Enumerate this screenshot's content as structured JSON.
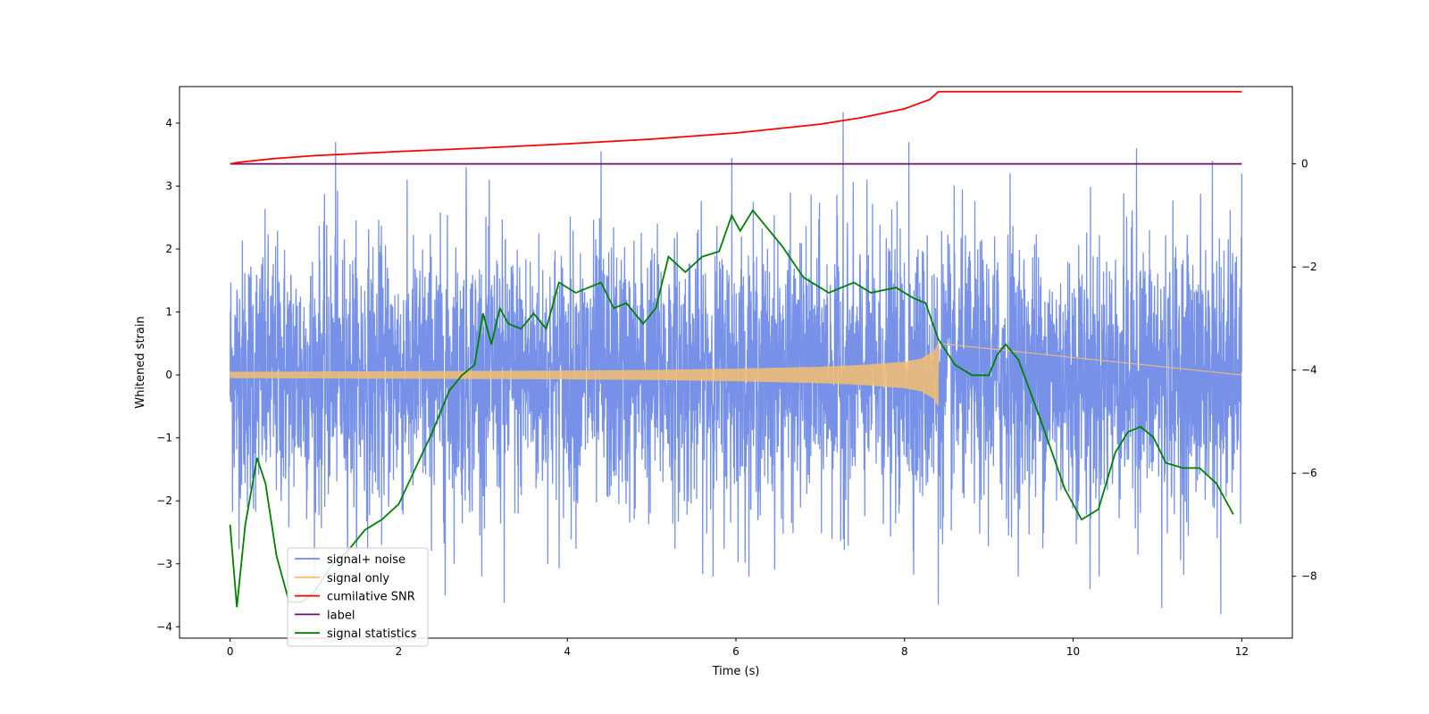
{
  "chart_data": {
    "type": "line",
    "title": "",
    "xlabel": "Time (s)",
    "ylabel": "Whitened strain",
    "y2label": "",
    "xlim": [
      -0.6,
      12.6
    ],
    "ylim": [
      -4.18,
      4.58
    ],
    "y2lim": [
      -9.2,
      1.5
    ],
    "xticks": [
      0,
      2,
      4,
      6,
      8,
      10,
      12
    ],
    "yticks": [
      -4,
      -3,
      -2,
      -1,
      0,
      1,
      2,
      3,
      4
    ],
    "y2ticks": [
      0,
      -2,
      -4,
      -6,
      -8
    ],
    "xtick_labels": [
      "0",
      "2",
      "4",
      "6",
      "8",
      "10",
      "12"
    ],
    "ytick_labels": [
      "−4",
      "−3",
      "−2",
      "−1",
      "0",
      "1",
      "2",
      "3",
      "4"
    ],
    "y2tick_labels": [
      "0",
      "−2",
      "−4",
      "−6",
      "−8"
    ],
    "grid": false,
    "legend_position": "lower-left",
    "signal_end_time": 8.4,
    "series": [
      {
        "name": "signal+ noise",
        "color": "#6f8be6",
        "axis": "left",
        "description_values": "dense noise between about -3.8 and 4.2 over 0-12 s",
        "x_range": [
          0,
          12
        ],
        "typical_amplitude": 1.7,
        "peaks": [
          [
            1.25,
            3.7
          ],
          [
            2.8,
            3.3
          ],
          [
            4.4,
            3.55
          ],
          [
            5.95,
            3.45
          ],
          [
            7.27,
            4.17
          ],
          [
            8.05,
            3.7
          ],
          [
            9.25,
            3.2
          ],
          [
            10.75,
            3.6
          ],
          [
            11.65,
            3.4
          ],
          [
            11.75,
            -3.8
          ],
          [
            11.05,
            -3.7
          ],
          [
            8.4,
            -3.65
          ],
          [
            3.25,
            -3.62
          ],
          [
            2.55,
            -3.5
          ],
          [
            10.2,
            -3.4
          ],
          [
            12.0,
            3.2
          ]
        ]
      },
      {
        "name": "signal only",
        "color": "#f5be70",
        "axis": "left",
        "envelope_t": [
          0,
          1,
          2,
          3,
          4,
          5,
          6,
          7,
          7.5,
          8,
          8.2,
          8.35,
          8.4
        ],
        "envelope_amp": [
          0.05,
          0.055,
          0.06,
          0.065,
          0.07,
          0.08,
          0.1,
          0.13,
          0.16,
          0.21,
          0.26,
          0.38,
          0.5
        ]
      },
      {
        "name": "cumilative SNR",
        "color": "#ff0000",
        "axis": "right",
        "x": [
          0,
          0.1,
          0.5,
          1,
          2,
          3,
          4,
          5,
          6,
          7,
          7.5,
          8,
          8.3,
          8.4,
          12
        ],
        "y": [
          0,
          0.03,
          0.1,
          0.16,
          0.24,
          0.31,
          0.39,
          0.48,
          0.6,
          0.77,
          0.9,
          1.07,
          1.25,
          1.4,
          1.4
        ]
      },
      {
        "name": "label",
        "color": "#6a0f6a",
        "axis": "right",
        "x": [
          0,
          12
        ],
        "y": [
          0,
          0
        ]
      },
      {
        "name": "signal statistics",
        "color": "#008000",
        "axis": "right",
        "x": [
          0,
          0.08,
          0.18,
          0.32,
          0.42,
          0.55,
          0.7,
          0.85,
          1.0,
          1.2,
          1.4,
          1.6,
          1.8,
          2.0,
          2.2,
          2.4,
          2.6,
          2.75,
          2.9,
          3.0,
          3.1,
          3.2,
          3.3,
          3.45,
          3.6,
          3.75,
          3.9,
          4.1,
          4.4,
          4.55,
          4.7,
          4.9,
          5.05,
          5.2,
          5.4,
          5.6,
          5.8,
          5.95,
          6.05,
          6.2,
          6.35,
          6.55,
          6.8,
          7.1,
          7.4,
          7.6,
          7.9,
          8.1,
          8.25,
          8.4,
          8.6,
          8.8,
          9.0,
          9.1,
          9.2,
          9.35,
          9.6,
          9.9,
          10.1,
          10.3,
          10.5,
          10.65,
          10.8,
          10.95,
          11.1,
          11.3,
          11.5,
          11.7,
          11.9
        ],
        "y": [
          -7.0,
          -8.6,
          -7.0,
          -5.7,
          -6.2,
          -7.6,
          -8.5,
          -8.5,
          -8.3,
          -7.8,
          -7.5,
          -7.1,
          -6.9,
          -6.6,
          -5.9,
          -5.2,
          -4.4,
          -4.1,
          -3.9,
          -2.9,
          -3.5,
          -2.8,
          -3.1,
          -3.2,
          -2.9,
          -3.2,
          -2.3,
          -2.5,
          -2.3,
          -2.8,
          -2.7,
          -3.1,
          -2.8,
          -1.8,
          -2.1,
          -1.8,
          -1.7,
          -1.0,
          -1.3,
          -0.9,
          -1.2,
          -1.6,
          -2.2,
          -2.5,
          -2.3,
          -2.5,
          -2.4,
          -2.6,
          -2.7,
          -3.4,
          -3.9,
          -4.1,
          -4.1,
          -3.7,
          -3.5,
          -3.8,
          -4.9,
          -6.3,
          -6.9,
          -6.7,
          -5.6,
          -5.2,
          -5.1,
          -5.3,
          -5.8,
          -5.9,
          -5.9,
          -6.2,
          -6.8
        ]
      }
    ]
  }
}
